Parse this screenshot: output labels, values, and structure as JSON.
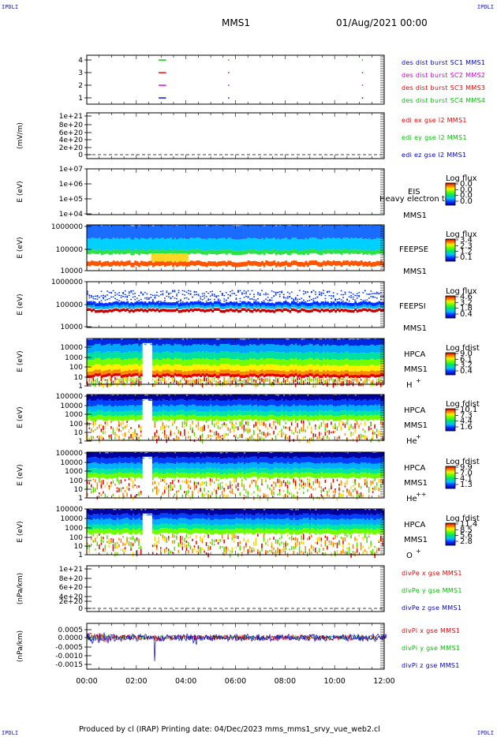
{
  "header": {
    "corner_tag": "IPDLI",
    "spacecraft": "MMS1",
    "date_time": "01/Aug/2021 00:00"
  },
  "footer": {
    "text": "Produced by cl (IRAP)    Printing date: 04/Dec/2023    mms_mms1_srvy_vue_web2.cl"
  },
  "colors": {
    "red": "#e60000",
    "green": "#00c000",
    "blue": "#0000cc",
    "magenta": "#d000d0"
  },
  "chart_data": {
    "type": "multi-panel time series / spectrogram",
    "x_axis": {
      "ticks": [
        "00:00",
        "02:00",
        "04:00",
        "06:00",
        "08:00",
        "10:00",
        "12:00"
      ],
      "range_hours": [
        0,
        12
      ]
    },
    "panels": [
      {
        "id": "burst",
        "type": "timeline",
        "yticks": [
          "4",
          "3",
          "2",
          "1"
        ],
        "legend": [
          {
            "label": "des dist burst SC1 MMS1",
            "color": "#0000cc"
          },
          {
            "label": "des dist burst SC2 MMS2",
            "color": "#d000d0"
          },
          {
            "label": "des dist burst SC3 MMS3",
            "color": "#e60000"
          },
          {
            "label": "des dist burst SC4 MMS4",
            "color": "#00c000"
          }
        ],
        "bursts": [
          {
            "row": 4,
            "start": 2.9,
            "end": 3.2,
            "color": "#00c000"
          },
          {
            "row": 3,
            "start": 2.9,
            "end": 3.2,
            "color": "#e60000"
          },
          {
            "row": 2,
            "start": 2.9,
            "end": 3.2,
            "color": "#d000d0"
          },
          {
            "row": 1,
            "start": 2.9,
            "end": 3.2,
            "color": "#0000cc"
          },
          {
            "row": 4,
            "start": 5.7,
            "end": 5.75,
            "color": "#00c000"
          },
          {
            "row": 3,
            "start": 5.7,
            "end": 5.75,
            "color": "#e60000"
          },
          {
            "row": 2,
            "start": 5.7,
            "end": 5.75,
            "color": "#d000d0"
          },
          {
            "row": 1,
            "start": 5.7,
            "end": 5.75,
            "color": "#0000cc"
          },
          {
            "row": 4,
            "start": 11.1,
            "end": 11.15,
            "color": "#00c000"
          },
          {
            "row": 3,
            "start": 11.1,
            "end": 11.15,
            "color": "#e60000"
          },
          {
            "row": 2,
            "start": 11.1,
            "end": 11.15,
            "color": "#d000d0"
          },
          {
            "row": 1,
            "start": 11.1,
            "end": 11.15,
            "color": "#0000cc"
          }
        ]
      },
      {
        "id": "edi",
        "type": "line",
        "ylabel": "(mV/m)",
        "yticks": [
          "1e+21",
          "8e+20",
          "6e+20",
          "4e+20",
          "2e+20",
          "0"
        ],
        "legend": [
          {
            "label": "edi ex gse l2 MMS1",
            "color": "#e60000"
          },
          {
            "label": "edi ey gse l2 MMS1",
            "color": "#00c000"
          },
          {
            "label": "edi ez gse l2 MMS1",
            "color": "#0000cc"
          }
        ]
      },
      {
        "id": "eis",
        "type": "spectrogram",
        "ylabel": "E (eV)",
        "yticks": [
          "1e+07",
          "1e+06",
          "1e+05",
          "1e+04"
        ],
        "instrument": "EIS",
        "sc": "MMS1",
        "overlay": "Heavy electron to",
        "cbar": {
          "label": "Log flux",
          "ticks": [
            "0.0",
            "0.0",
            "0.0",
            "0.0"
          ]
        }
      },
      {
        "id": "feepse",
        "type": "spectrogram",
        "ylabel": "E (eV)",
        "yticks": [
          "1000000",
          "100000",
          "10000"
        ],
        "instrument": "FEEPSE",
        "sc": "MMS1",
        "cbar": {
          "label": "Log flux",
          "ticks": [
            "3.4",
            "2.3",
            "1.2",
            "0.1"
          ]
        }
      },
      {
        "id": "feepsi",
        "type": "spectrogram",
        "ylabel": "E (eV)",
        "yticks": [
          "1000000",
          "100000",
          "10000"
        ],
        "instrument": "FEEPSI",
        "sc": "MMS1",
        "cbar": {
          "label": "Log flux",
          "ticks": [
            "4.6",
            "3.2",
            "1.8",
            "0.4"
          ]
        }
      },
      {
        "id": "hpca_h",
        "type": "spectrogram",
        "ylabel": "E (eV)",
        "yticks": [
          "10000",
          "1000",
          "100",
          "10",
          "1"
        ],
        "instrument": "HPCA",
        "sc": "MMS1",
        "species": "H",
        "charge": "+",
        "cbar": {
          "label": "Log fdist",
          "ticks": [
            "9.0",
            "6.1",
            "3.2",
            "0.4"
          ]
        }
      },
      {
        "id": "hpca_he",
        "type": "spectrogram",
        "ylabel": "E (eV)",
        "yticks": [
          "100000",
          "10000",
          "1000",
          "100",
          "10",
          "1"
        ],
        "instrument": "HPCA",
        "sc": "MMS1",
        "species": "He",
        "charge": "+",
        "cbar": {
          "label": "Log fdist",
          "ticks": [
            "10.1",
            "7.3",
            "4.4",
            "1.6"
          ]
        }
      },
      {
        "id": "hpca_he2",
        "type": "spectrogram",
        "ylabel": "E (eV)",
        "yticks": [
          "100000",
          "10000",
          "1000",
          "100",
          "10",
          "1"
        ],
        "instrument": "HPCA",
        "sc": "MMS1",
        "species": "He",
        "charge": "++",
        "cbar": {
          "label": "Log fdist",
          "ticks": [
            "9.9",
            "7.0",
            "4.1",
            "1.3"
          ]
        }
      },
      {
        "id": "hpca_o",
        "type": "spectrogram",
        "ylabel": "E (eV)",
        "yticks": [
          "100000",
          "10000",
          "1000",
          "100",
          "10",
          "1"
        ],
        "instrument": "HPCA",
        "sc": "MMS1",
        "species": "O",
        "charge": "+",
        "cbar": {
          "label": "Log fdist",
          "ticks": [
            "11.4",
            "8.5",
            "5.6",
            "2.8"
          ]
        }
      },
      {
        "id": "divpe",
        "type": "line",
        "ylabel": "(nPa/km)",
        "yticks": [
          "1e+21",
          "8e+20",
          "6e+20",
          "4e+20",
          "2e+20",
          "0"
        ],
        "legend": [
          {
            "label": "divPe x gse MMS1",
            "color": "#e60000"
          },
          {
            "label": "divPe y gse MMS1",
            "color": "#00c000"
          },
          {
            "label": "divPe z gse MMS1",
            "color": "#0000cc"
          }
        ]
      },
      {
        "id": "divpi",
        "type": "line",
        "ylabel": "(nPa/km)",
        "yticks": [
          "0.0005",
          "0.0000",
          "-0.0005",
          "-0.0010",
          "-0.0015"
        ],
        "legend": [
          {
            "label": "divPi x gse MMS1",
            "color": "#e60000"
          },
          {
            "label": "divPi y gse MMS1",
            "color": "#00c000"
          },
          {
            "label": "divPi z gse MMS1",
            "color": "#0000cc"
          }
        ]
      }
    ]
  }
}
